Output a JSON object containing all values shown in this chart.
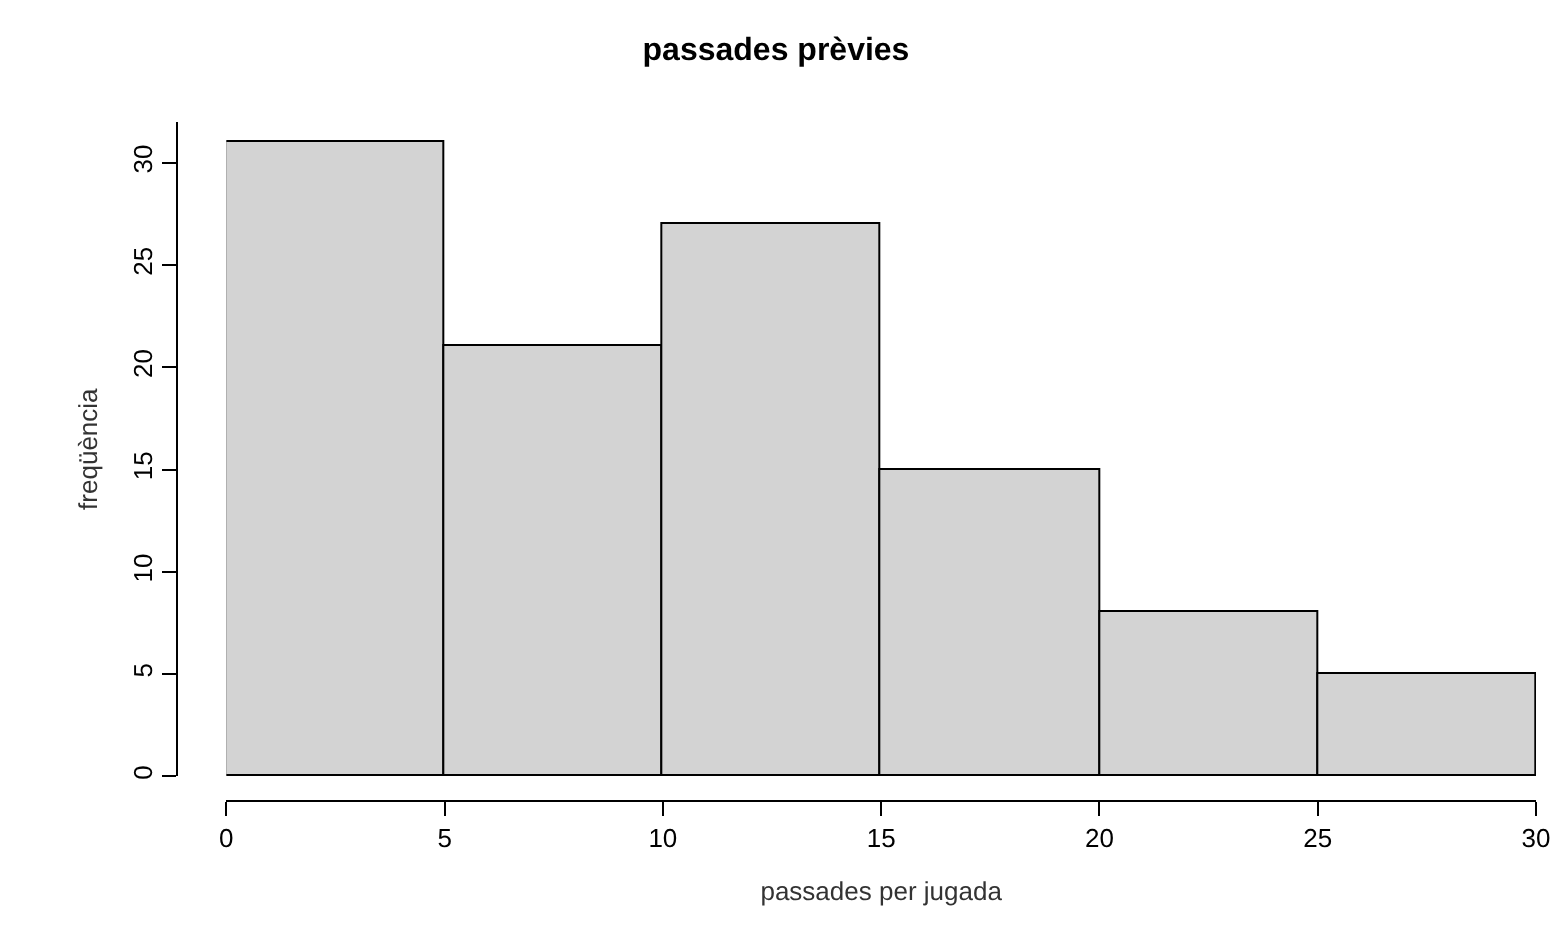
{
  "chart_data": {
    "type": "histogram",
    "title": "passades prèvies",
    "xlabel": "passades per jugada",
    "ylabel": "freqüència",
    "bins": [
      0,
      5,
      10,
      15,
      20,
      25,
      30
    ],
    "values": [
      31,
      21,
      27,
      15,
      8,
      5
    ],
    "color": "#d3d3d3",
    "xlim": [
      0,
      30
    ],
    "xticks": [
      0,
      5,
      10,
      15,
      20,
      25,
      30
    ],
    "ylim": [
      0,
      32
    ],
    "yticks": [
      0,
      5,
      10,
      15,
      20,
      25,
      30
    ],
    "grid": false
  }
}
